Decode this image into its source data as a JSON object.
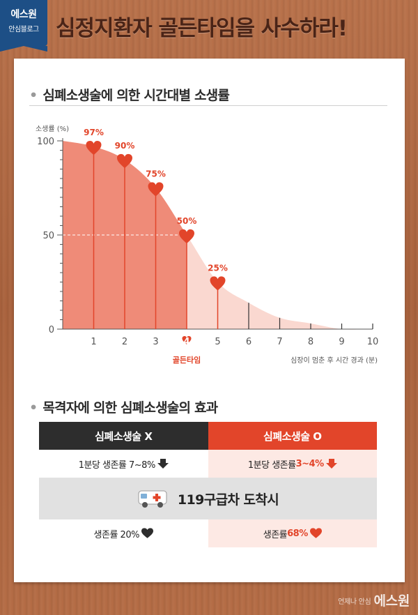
{
  "badge": {
    "line1": "에스원",
    "line2": "안심블로그"
  },
  "main_title": "심정지환자 골든타임을 사수하라!",
  "section1_title": "심폐소생술에 의한 시간대별 소생률",
  "section2_title": "목격자에 의한 심폐소생술의 효과",
  "colors": {
    "accent": "#e2452a",
    "fill_dark": "#ef8b78",
    "fill_light": "#fad8d0",
    "dark": "#2d2d2d"
  },
  "chart_data": {
    "type": "area",
    "ylabel": "소생률 (%)",
    "xlabel": "심장이 멈춘 후 시간 경과 (분)",
    "x_ticks": [
      "1",
      "2",
      "3",
      "4",
      "5",
      "6",
      "7",
      "8",
      "9",
      "10"
    ],
    "y_ticks": [
      "0",
      "50",
      "100"
    ],
    "xlim": [
      0,
      10
    ],
    "ylim": [
      0,
      100
    ],
    "curve": [
      {
        "x": 0,
        "y": 100
      },
      {
        "x": 1,
        "y": 97
      },
      {
        "x": 2,
        "y": 90
      },
      {
        "x": 3,
        "y": 75
      },
      {
        "x": 4,
        "y": 50
      },
      {
        "x": 5,
        "y": 25
      },
      {
        "x": 6,
        "y": 14
      },
      {
        "x": 7,
        "y": 6
      },
      {
        "x": 8,
        "y": 3
      },
      {
        "x": 9,
        "y": 0
      },
      {
        "x": 10,
        "y": 0
      }
    ],
    "highlighted_points": [
      {
        "x": 1,
        "y": 97,
        "label": "97%"
      },
      {
        "x": 2,
        "y": 90,
        "label": "90%"
      },
      {
        "x": 3,
        "y": 75,
        "label": "75%"
      },
      {
        "x": 4,
        "y": 50,
        "label": "50%"
      },
      {
        "x": 5,
        "y": 25,
        "label": "25%"
      }
    ],
    "golden_time_x": 4,
    "golden_time_label": "골든타임",
    "grid": false,
    "legend": "none"
  },
  "table": {
    "header_left": "심폐소생술 X",
    "header_right": "심폐소생술 O",
    "row1_left": "1분당 생존률 7~8%",
    "row1_right_prefix": "1분당 생존률 ",
    "row1_right_value": "3~4%",
    "ambulance_text": "119구급차 도착시",
    "row3_left": "생존률 20%",
    "row3_right_prefix": "생존률 ",
    "row3_right_value": "68%"
  },
  "footer": {
    "tagline": "언제나 안심",
    "brand": "에스원"
  }
}
